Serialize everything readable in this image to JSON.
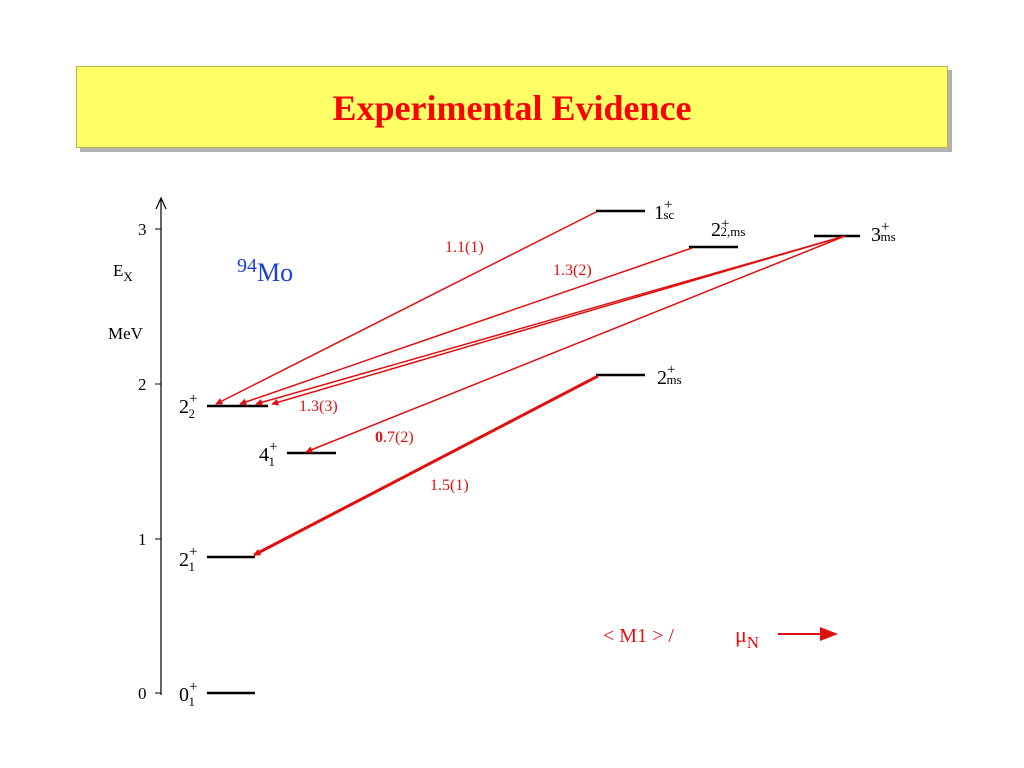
{
  "header": {
    "title": "Experimental Evidence"
  },
  "axis": {
    "title_main": "E",
    "title_sub": "X",
    "unit": "MeV",
    "ticks": [
      "3",
      "2",
      "1",
      "0"
    ]
  },
  "nucleus": {
    "mass": "94",
    "element": "Mo"
  },
  "levels": {
    "l0": {
      "main": "0",
      "sup": "+",
      "sub": "1"
    },
    "l21": {
      "main": "2",
      "sup": "+",
      "sub": "1"
    },
    "l41": {
      "main": "4",
      "sup": "+",
      "sub": "1"
    },
    "l22": {
      "main": "2",
      "sup": "+",
      "sub": "2"
    },
    "l2ms": {
      "main": "2",
      "sup": "+",
      "sub": "ms"
    },
    "l1sc": {
      "main": "1",
      "sup": "+",
      "sub": "sc"
    },
    "l22ms": {
      "main": "2",
      "sup": "+",
      "sub": "2,ms"
    },
    "l3ms": {
      "main": "3",
      "sup": "+",
      "sub": "ms"
    }
  },
  "transitions": {
    "t1": "1.1(1)",
    "t2": "1.3(2)",
    "t3": "1.3(3)",
    "t4_bold": "0",
    "t4_rest": ".7(2)",
    "t5": "1.5(1)"
  },
  "legend": {
    "text": "< M1 > /",
    "unit_main": "μ",
    "unit_sub": "N"
  },
  "colors": {
    "arrow": "#e01010",
    "level": "#000000",
    "nucleus": "#1a3fd6",
    "title": "#ff0000",
    "title_bg": "#ffff66"
  }
}
